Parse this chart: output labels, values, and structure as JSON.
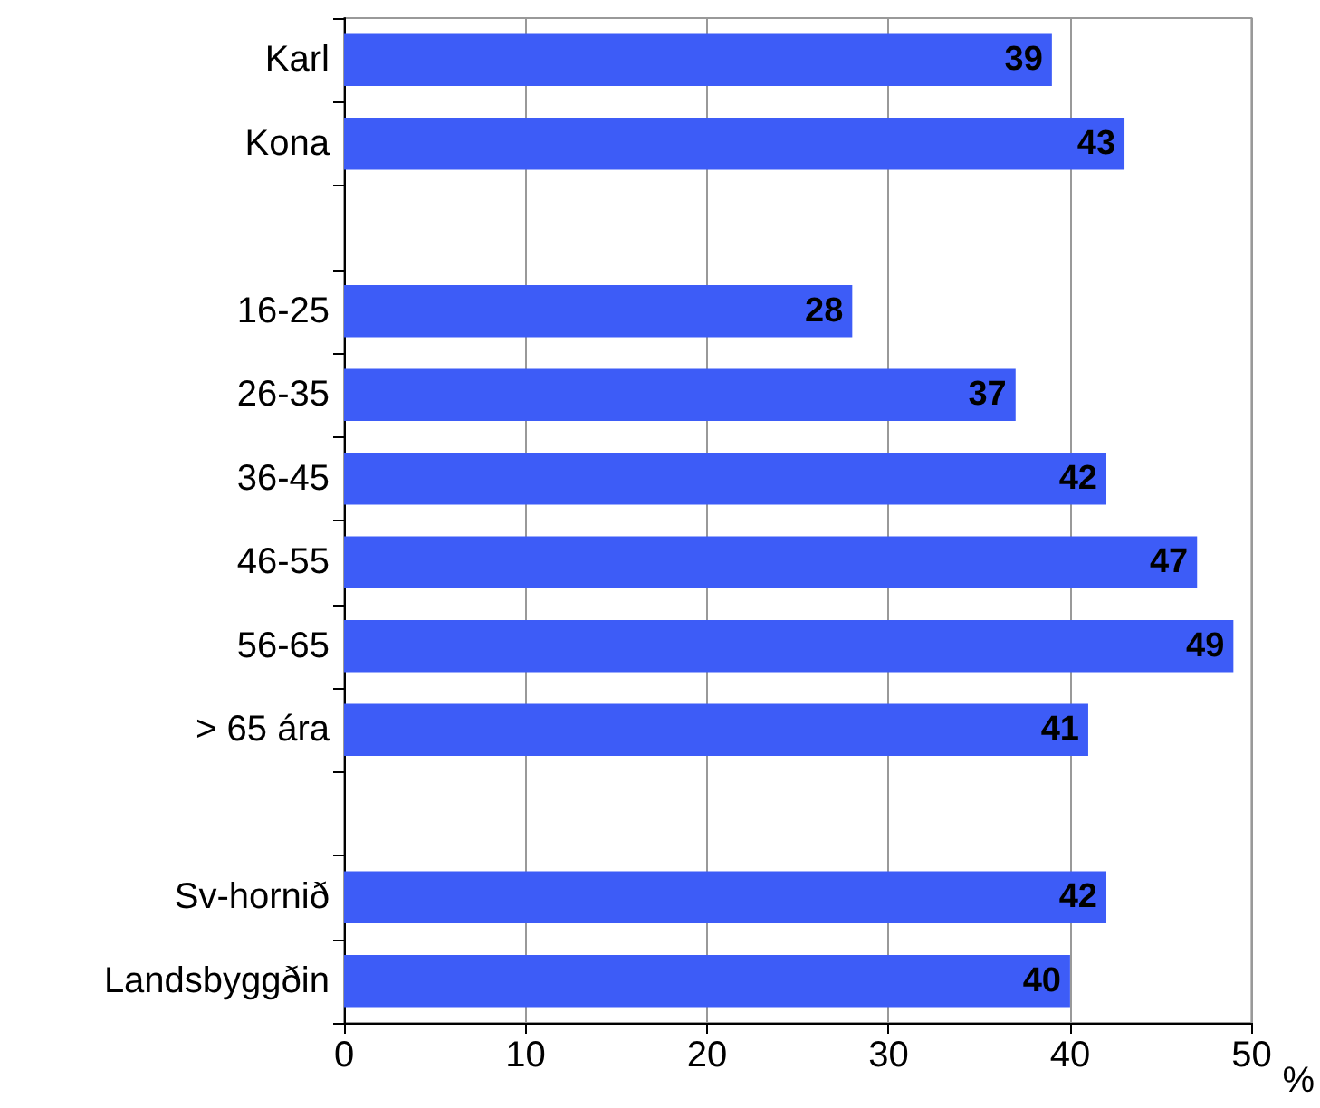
{
  "chart_data": {
    "type": "bar",
    "orientation": "horizontal",
    "xlabel": "%",
    "categories": [
      "Karl",
      "Kona",
      null,
      "16-25",
      "26-35",
      "36-45",
      "46-55",
      "56-65",
      "> 65 ára",
      null,
      "Sv-hornið",
      "Landsbyggðin"
    ],
    "values": [
      39,
      43,
      null,
      28,
      37,
      42,
      47,
      49,
      41,
      null,
      42,
      40
    ],
    "color": "#3d5cf7",
    "xlim": [
      0,
      50
    ],
    "xticks": [
      0,
      10,
      20,
      30,
      40,
      50
    ],
    "grid": "x",
    "data_labels": true
  }
}
